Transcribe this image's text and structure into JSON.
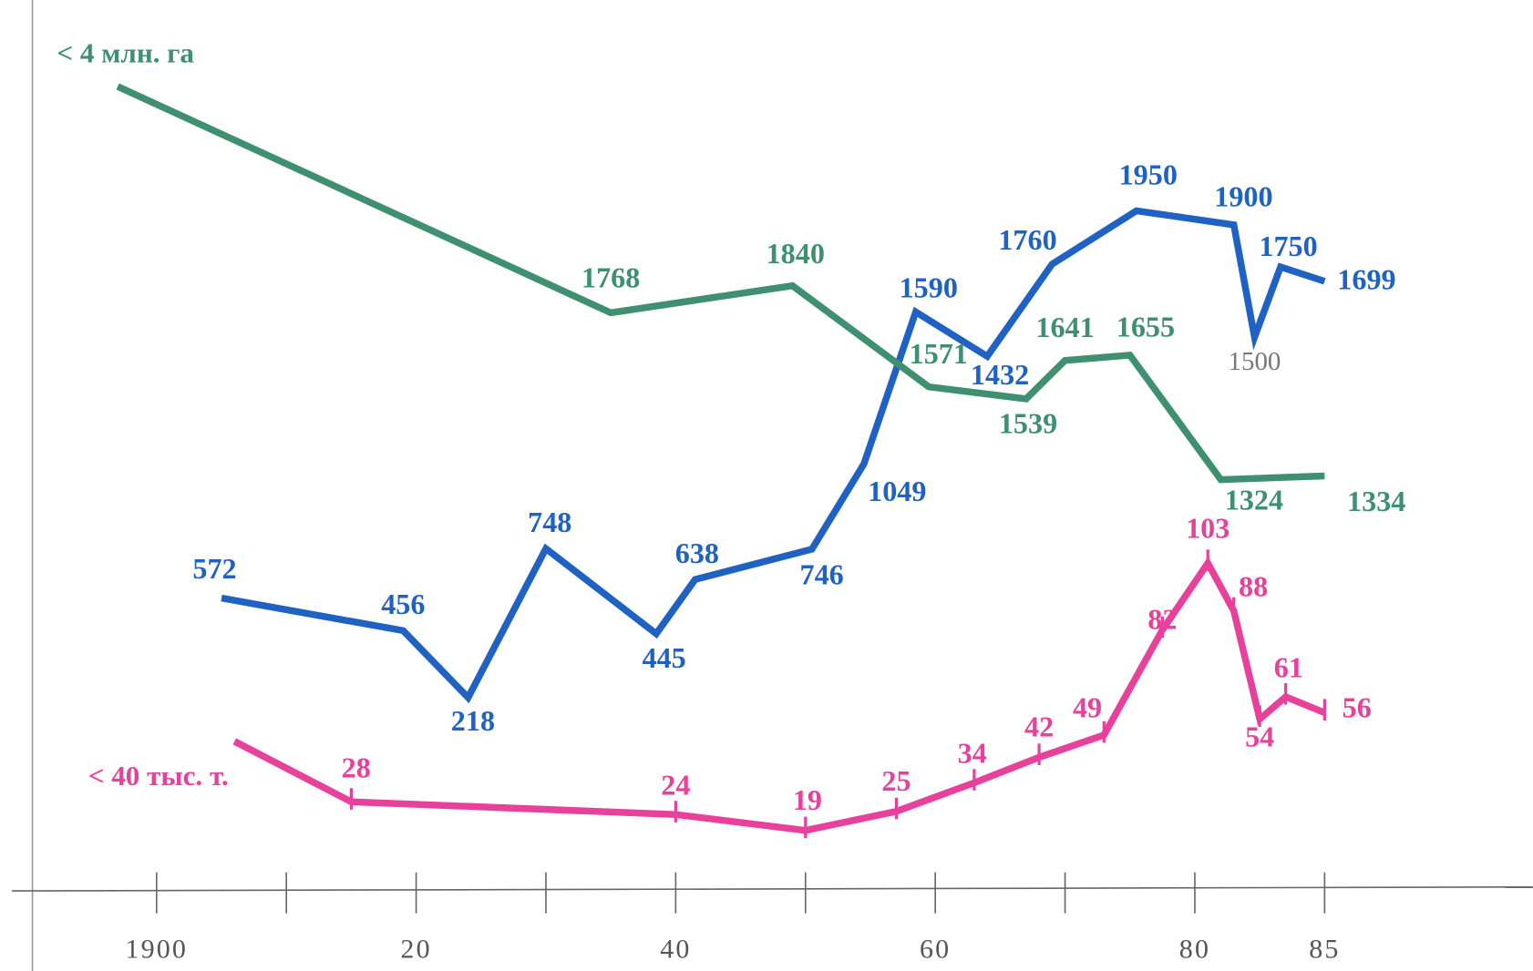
{
  "chart_data": {
    "type": "line",
    "xticks": [
      {
        "value": 1900,
        "label": "1900"
      },
      {
        "value": 1920,
        "label": "20"
      },
      {
        "value": 1940,
        "label": "40"
      },
      {
        "value": 1960,
        "label": "60"
      },
      {
        "value": 1980,
        "label": "80"
      },
      {
        "value": 1985,
        "label": "85"
      }
    ],
    "xticks_minor": [
      1910,
      1930,
      1950,
      1970
    ],
    "xlim": [
      1895,
      1990
    ],
    "series": [
      {
        "color": "#1f62c4",
        "ylim": [
          -470,
          2700
        ],
        "x": [
          1905,
          1919,
          1924,
          1930,
          1938.5,
          1941.5,
          1950.5,
          1954.5,
          1958.5,
          1964,
          1969,
          1975.5,
          1981.5,
          1982.3,
          1983.3,
          1985
        ],
        "values": [
          572,
          456,
          218,
          748,
          445,
          638,
          746,
          1049,
          1590,
          1432,
          1760,
          1950,
          1900,
          1500,
          1750,
          1699
        ],
        "value_labels": [
          "572",
          "456",
          "218",
          "748",
          "445",
          "638",
          "746",
          "1049",
          "1590",
          "1432",
          "1760",
          "1950",
          "1900",
          "1500",
          "1750",
          "1699"
        ]
      },
      {
        "name": "< 4 млн. га",
        "color": "#3e9070",
        "ylim": [
          230,
          2600
        ],
        "x": [
          1897,
          1935,
          1949,
          1959.5,
          1967,
          1970,
          1975,
          1981,
          1985
        ],
        "values": [
          2370,
          1768,
          1840,
          1571,
          1539,
          1641,
          1655,
          1324,
          1334
        ],
        "value_labels": [
          null,
          "1768",
          "1840",
          "1571",
          "1539",
          "1641",
          "1655",
          "1324",
          "1334"
        ]
      },
      {
        "name": "< 40 тыс. т.",
        "color": "#e8419b",
        "ylim": [
          0,
          280
        ],
        "x": [
          1906,
          1915,
          1940,
          1950,
          1957,
          1963,
          1968,
          1973,
          1977.5,
          1980.5,
          1981.5,
          1982.5,
          1983.5,
          1985
        ],
        "values": [
          47,
          28,
          24,
          19,
          25,
          34,
          42,
          49,
          82,
          103,
          88,
          54,
          61,
          56
        ],
        "value_labels": [
          null,
          "28",
          "24",
          "19",
          "25",
          "34",
          "42",
          "49",
          "82",
          "103",
          "88",
          "54",
          "61",
          "56"
        ]
      }
    ]
  }
}
